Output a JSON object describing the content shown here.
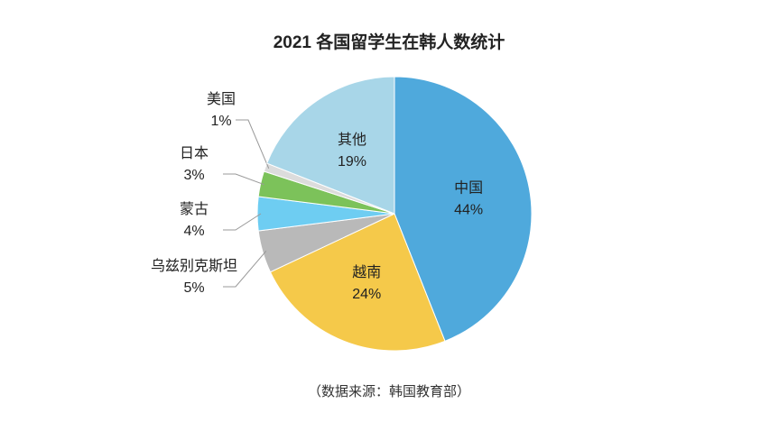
{
  "chart_data": {
    "type": "pie",
    "title": "2021 各国留学生在韩人数统计",
    "categories": [
      "中国",
      "越南",
      "乌兹别克斯坦",
      "蒙古",
      "日本",
      "美国",
      "其他"
    ],
    "values": [
      44,
      24,
      5,
      4,
      3,
      1,
      19
    ],
    "value_labels": [
      "44%",
      "24%",
      "5%",
      "4%",
      "3%",
      "1%",
      "19%"
    ],
    "colors": [
      "#4fa9dc",
      "#f5c94a",
      "#b9b9b9",
      "#6ecdf2",
      "#7cc25a",
      "#dcdcdc",
      "#a8d6e8"
    ],
    "source": "（数据来源：韩国教育部）"
  }
}
